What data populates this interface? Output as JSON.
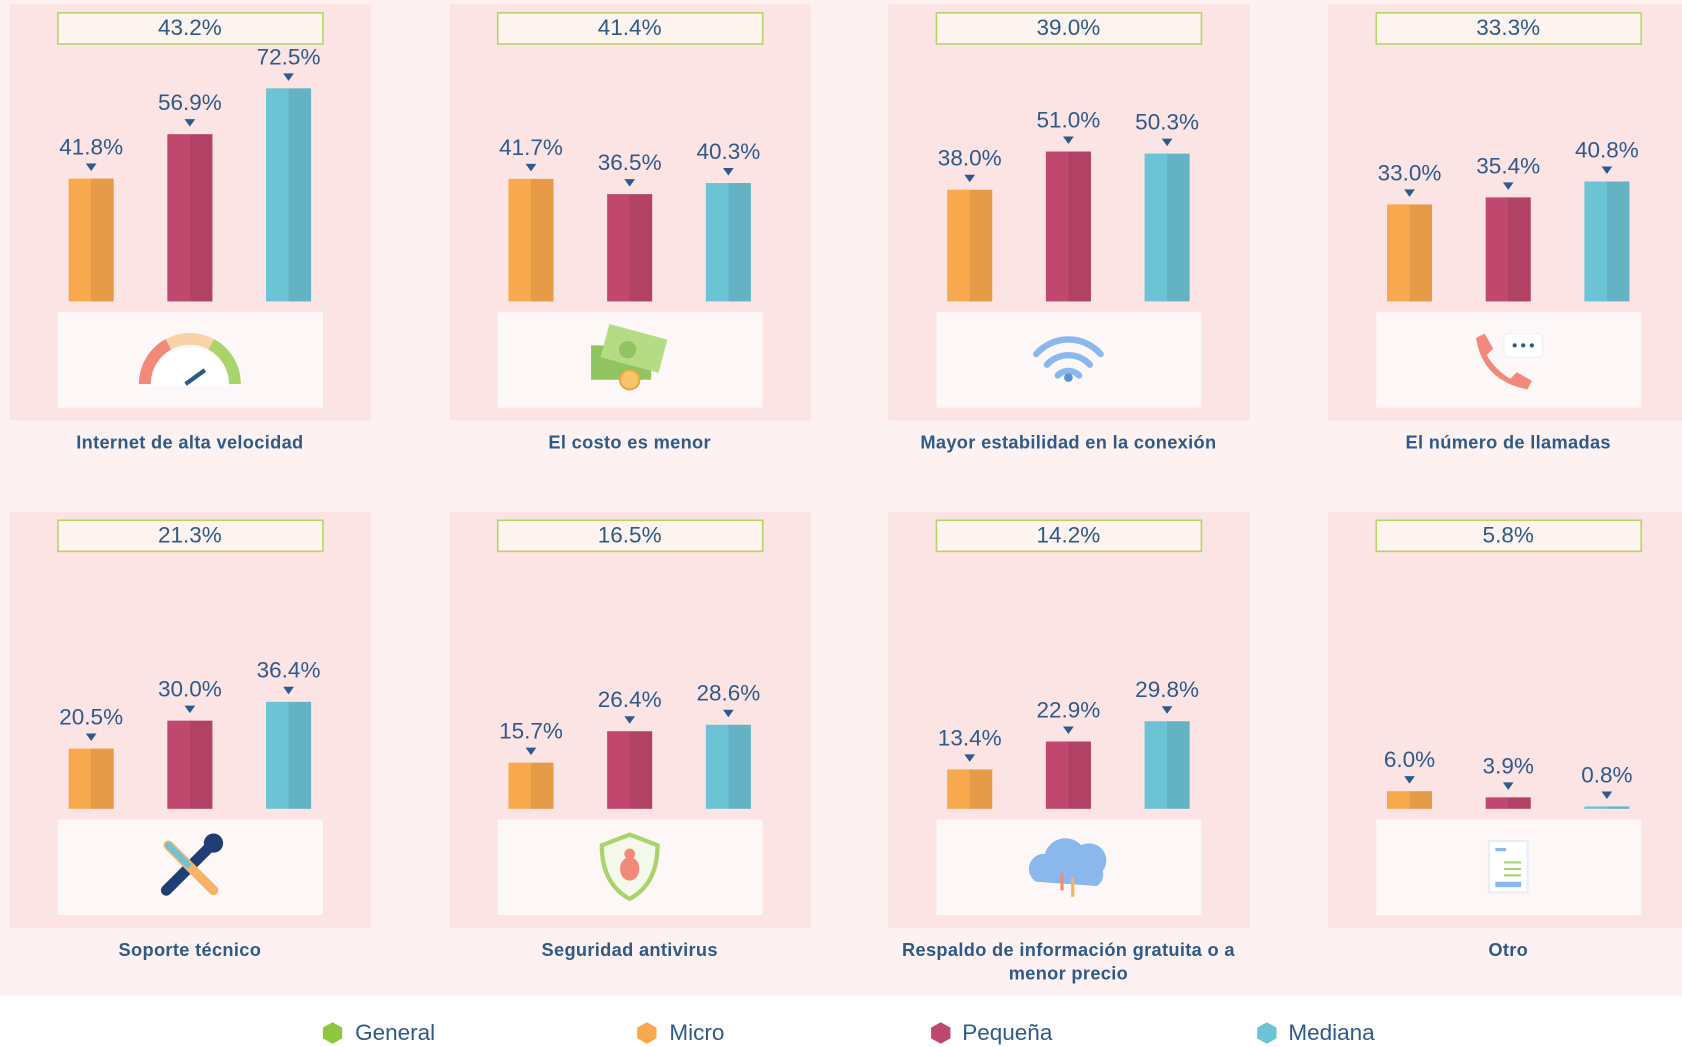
{
  "chart_data": {
    "type": "bar",
    "categories": [
      "Internet de alta velocidad",
      "El costo es menor",
      "Mayor estabilidad en la conexión",
      "El número de llamadas",
      "Soporte técnico",
      "Seguridad antivirus",
      "Respaldo de información gratuita o a menor precio",
      "Otro"
    ],
    "series": [
      {
        "name": "General",
        "color": "#8dc63f",
        "values": [
          43.2,
          41.4,
          39,
          33.3,
          21.3,
          16.5,
          14.2,
          5.8
        ],
        "value_labels": [
          "43.2%",
          "41.4%",
          "39.0%",
          "33.3%",
          "21.3%",
          "16.5%",
          "14.2%",
          "5.8%"
        ]
      },
      {
        "name": "Micro",
        "color": "#f9a94d",
        "values": [
          41.8,
          41.7,
          38,
          33,
          20.5,
          15.7,
          13.4,
          6
        ],
        "value_labels": [
          "41.8%",
          "41.7%",
          "38.0%",
          "33.0%",
          "20.5%",
          "15.7%",
          "13.4%",
          "6.0%"
        ]
      },
      {
        "name": "Pequeña",
        "color": "#c0486e",
        "values": [
          56.9,
          36.5,
          51,
          35.4,
          30,
          26.4,
          22.9,
          3.9
        ],
        "value_labels": [
          "56.9%",
          "36.5%",
          "51.0%",
          "35.4%",
          "30.0%",
          "26.4%",
          "22.9%",
          "3.9%"
        ]
      },
      {
        "name": "Mediana",
        "color": "#6cc3d5",
        "values": [
          72.5,
          40.3,
          50.3,
          40.8,
          36.4,
          28.6,
          29.8,
          0.8
        ],
        "value_labels": [
          "72.5%",
          "40.3%",
          "50.3%",
          "40.8%",
          "36.4%",
          "28.6%",
          "29.8%",
          "0.8%"
        ]
      }
    ]
  }
}
